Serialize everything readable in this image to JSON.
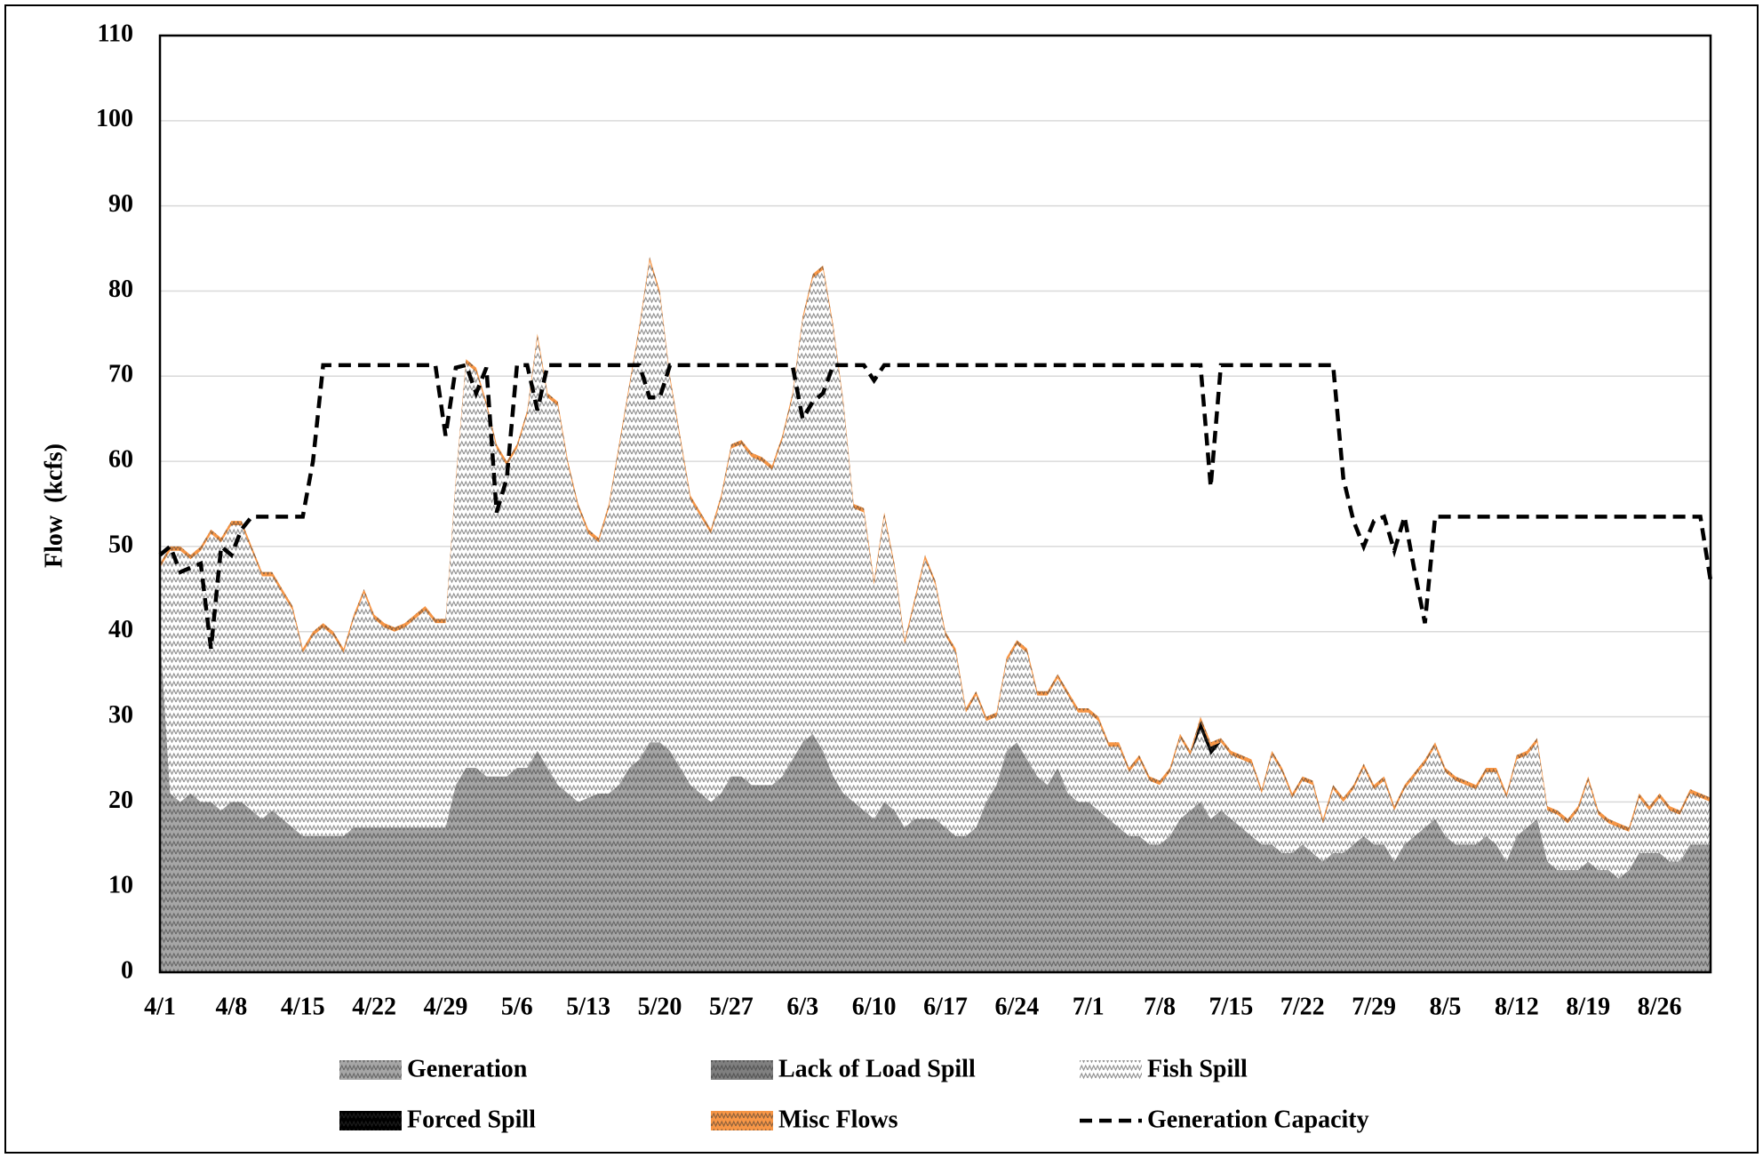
{
  "chart_data": {
    "type": "area",
    "y_label": "Flow  (kcfs)",
    "categories": [
      "4/1",
      null,
      null,
      null,
      null,
      null,
      null,
      "4/8",
      null,
      null,
      null,
      null,
      null,
      null,
      "4/15",
      null,
      null,
      null,
      null,
      null,
      null,
      "4/22",
      null,
      null,
      null,
      null,
      null,
      null,
      "4/29",
      null,
      null,
      null,
      null,
      null,
      null,
      "5/6",
      null,
      null,
      null,
      null,
      null,
      null,
      "5/13",
      null,
      null,
      null,
      null,
      null,
      null,
      "5/20",
      null,
      null,
      null,
      null,
      null,
      null,
      "5/27",
      null,
      null,
      null,
      null,
      null,
      null,
      "6/3",
      null,
      null,
      null,
      null,
      null,
      null,
      "6/10",
      null,
      null,
      null,
      null,
      null,
      null,
      "6/17",
      null,
      null,
      null,
      null,
      null,
      null,
      "6/24",
      null,
      null,
      null,
      null,
      null,
      null,
      "7/1",
      null,
      null,
      null,
      null,
      null,
      null,
      "7/8",
      null,
      null,
      null,
      null,
      null,
      null,
      "7/15",
      null,
      null,
      null,
      null,
      null,
      null,
      "7/22",
      null,
      null,
      null,
      null,
      null,
      null,
      "7/29",
      null,
      null,
      null,
      null,
      null,
      null,
      "8/5",
      null,
      null,
      null,
      null,
      null,
      null,
      "8/12",
      null,
      null,
      null,
      null,
      null,
      null,
      "8/19",
      null,
      null,
      null,
      null,
      null,
      null,
      "8/26",
      null,
      null,
      null,
      null,
      null
    ],
    "series": [
      {
        "name": "Generation",
        "color": "#a6a6a6",
        "values": [
          40,
          21,
          20,
          21,
          20,
          20,
          19,
          20,
          20,
          19,
          18,
          19,
          18,
          17,
          16,
          16,
          16,
          16,
          16,
          17,
          17,
          17,
          17,
          17,
          17,
          17,
          17,
          17,
          17,
          22,
          24,
          24,
          23,
          23,
          23,
          24,
          24,
          26,
          24,
          22,
          21,
          20,
          20.5,
          21,
          21,
          22,
          24,
          25,
          27,
          27,
          26,
          24,
          22,
          21,
          20,
          21,
          23,
          23,
          22,
          22,
          22,
          23,
          25,
          27,
          28,
          26,
          23,
          21,
          20,
          19,
          18,
          20,
          19,
          17,
          18,
          18,
          18,
          17,
          16,
          16,
          17,
          20,
          22,
          26,
          27,
          25,
          23,
          22,
          24,
          21,
          20,
          20,
          19,
          18,
          17,
          16,
          16,
          15,
          15,
          16,
          18,
          19,
          20,
          18,
          19,
          18,
          17,
          16,
          15,
          15,
          14,
          14,
          15,
          14,
          13,
          14,
          14,
          15,
          16,
          15,
          15,
          13,
          15,
          16,
          17,
          18,
          16,
          15,
          15,
          15,
          16,
          15,
          13,
          16,
          17,
          18,
          13,
          12,
          12,
          12,
          13,
          12,
          12,
          11,
          12,
          14,
          14,
          14,
          13,
          13,
          15,
          15,
          15
        ]
      },
      {
        "name": "Lack of Load Spill",
        "color": "#7f7f7f",
        "values": [
          0,
          0,
          0,
          0,
          0,
          0,
          0,
          0,
          0,
          0,
          0,
          0,
          0,
          0,
          0,
          0,
          0,
          0,
          0,
          0,
          0,
          0,
          0,
          0,
          0,
          0,
          0,
          0,
          0,
          0,
          0,
          0,
          0,
          0,
          0,
          0,
          0,
          0,
          0,
          0,
          0,
          0,
          0,
          0,
          0,
          0,
          0,
          0,
          0,
          0,
          0,
          0,
          0,
          0,
          0,
          0,
          0,
          0,
          0,
          0,
          0,
          0,
          0,
          0,
          0,
          0,
          0,
          0,
          0,
          0,
          0,
          0,
          0,
          0,
          0,
          0,
          0,
          0,
          0,
          0,
          0,
          0,
          0,
          0,
          0,
          0,
          0,
          0,
          0,
          0,
          0,
          0,
          0,
          0,
          0,
          0,
          0,
          0,
          0,
          0,
          0,
          0,
          0,
          0,
          0,
          0,
          0,
          0,
          0,
          0,
          0,
          0,
          0,
          0,
          0,
          0,
          0,
          0,
          0,
          0,
          0,
          0,
          0,
          0,
          0,
          0,
          0,
          0,
          0,
          0,
          0,
          0,
          0,
          0,
          0,
          0,
          0,
          0,
          0,
          0,
          0,
          0,
          0,
          0,
          0,
          0,
          0,
          0,
          0,
          0,
          0,
          0,
          0
        ]
      },
      {
        "name": "Fish Spill",
        "color": "#ffffff",
        "values": [
          7.5,
          28.5,
          29.5,
          27.5,
          29.5,
          31.5,
          31.5,
          32.5,
          32.5,
          30.5,
          28.5,
          27.5,
          26.5,
          25.5,
          21.5,
          23.5,
          24.5,
          23.5,
          21.5,
          24.5,
          27.5,
          24.5,
          23.5,
          23,
          23.5,
          24.5,
          25.5,
          24,
          24,
          35.5,
          47.5,
          46.5,
          43.5,
          38.5,
          36.5,
          37.5,
          41.5,
          48.5,
          43.5,
          44.5,
          38.5,
          34.5,
          31,
          29.5,
          33.5,
          39.5,
          44.5,
          50.5,
          56.5,
          52.5,
          43.5,
          38.5,
          33.5,
          32.5,
          31.5,
          34.5,
          38.5,
          39,
          38.5,
          38,
          37,
          39.5,
          42.5,
          49.5,
          53.5,
          56.5,
          52.5,
          45.5,
          34.5,
          35,
          27.5,
          33.5,
          28.5,
          21.5,
          25.5,
          30.5,
          27.5,
          22.5,
          21.5,
          14.5,
          15.5,
          9.5,
          8,
          10.5,
          11.5,
          12.5,
          9.5,
          10.5,
          10.5,
          11.5,
          10.5,
          10.5,
          10.5,
          8.5,
          9.5,
          7.5,
          9,
          7.5,
          7,
          7.5,
          9.5,
          6.5,
          8.5,
          7.5,
          8,
          7.5,
          8,
          8.5,
          6,
          10.5,
          9.5,
          6.5,
          7.5,
          8,
          4.5,
          7.5,
          6,
          6.5,
          8,
          6.5,
          7.5,
          6,
          6.5,
          7,
          7.5,
          8.5,
          7.5,
          7.5,
          7,
          6.5,
          7.5,
          8.5,
          7.5,
          9,
          8.5,
          9,
          6,
          6.5,
          5.5,
          7,
          9.5,
          6.5,
          5.5,
          6,
          4.5,
          6.5,
          5,
          6.5,
          6,
          5.5,
          6,
          5.5,
          5
        ]
      },
      {
        "name": "Forced Spill",
        "color": "#000000",
        "values": [
          0,
          0,
          0,
          0,
          0,
          0,
          0,
          0,
          0,
          0,
          0,
          0,
          0,
          0,
          0,
          0,
          0,
          0,
          0,
          0,
          0,
          0,
          0,
          0,
          0,
          0,
          0,
          0,
          0,
          0,
          0,
          0,
          0,
          0,
          0,
          0,
          0,
          0,
          0,
          0,
          0,
          0,
          0,
          0,
          0,
          0,
          0,
          0,
          0,
          0,
          0,
          0,
          0,
          0,
          0,
          0,
          0,
          0,
          0,
          0,
          0,
          0,
          0,
          0,
          0,
          0,
          0,
          0,
          0,
          0,
          0,
          0,
          0,
          0,
          0,
          0,
          0,
          0,
          0,
          0,
          0,
          0,
          0,
          0,
          0,
          0,
          0,
          0,
          0,
          0,
          0,
          0,
          0,
          0,
          0,
          0,
          0,
          0,
          0,
          0,
          0,
          0,
          1,
          1,
          0,
          0,
          0,
          0,
          0,
          0,
          0,
          0,
          0,
          0,
          0,
          0,
          0,
          0,
          0,
          0,
          0,
          0,
          0,
          0,
          0,
          0,
          0,
          0,
          0,
          0,
          0,
          0,
          0,
          0,
          0,
          0,
          0,
          0,
          0,
          0,
          0,
          0,
          0,
          0,
          0,
          0,
          0,
          0,
          0,
          0,
          0,
          0,
          0
        ]
      },
      {
        "name": "Misc Flows",
        "color": "#f79646",
        "values": [
          0.5,
          0.5,
          0.5,
          0.5,
          0.5,
          0.5,
          0.5,
          0.5,
          0.5,
          0.5,
          0.5,
          0.5,
          0.5,
          0.5,
          0.5,
          0.5,
          0.5,
          0.5,
          0.5,
          0.5,
          0.5,
          0.5,
          0.5,
          0.5,
          0.5,
          0.5,
          0.5,
          0.5,
          0.5,
          0.5,
          0.5,
          0.5,
          0.5,
          0.5,
          0.5,
          0.5,
          0.5,
          0.5,
          0.5,
          0.5,
          0.5,
          0.5,
          0.5,
          0.5,
          0.5,
          0.5,
          0.5,
          0.5,
          0.5,
          0.5,
          0.5,
          0.5,
          0.5,
          0.5,
          0.5,
          0.5,
          0.5,
          0.5,
          0.5,
          0.5,
          0.5,
          0.5,
          0.5,
          0.5,
          0.5,
          0.5,
          0.5,
          0.5,
          0.5,
          0.5,
          0.5,
          0.5,
          0.5,
          0.5,
          0.5,
          0.5,
          0.5,
          0.5,
          0.5,
          0.5,
          0.5,
          0.5,
          0.5,
          0.5,
          0.5,
          0.5,
          0.5,
          0.5,
          0.5,
          0.5,
          0.5,
          0.5,
          0.5,
          0.5,
          0.5,
          0.5,
          0.5,
          0.5,
          0.5,
          0.5,
          0.5,
          0.5,
          0.5,
          0.5,
          0.5,
          0.5,
          0.5,
          0.5,
          0.5,
          0.5,
          0.5,
          0.5,
          0.5,
          0.5,
          0.5,
          0.5,
          0.5,
          0.5,
          0.5,
          0.5,
          0.5,
          0.5,
          0.5,
          0.5,
          0.5,
          0.5,
          0.5,
          0.5,
          0.5,
          0.5,
          0.5,
          0.5,
          0.5,
          0.5,
          0.5,
          0.5,
          0.5,
          0.5,
          0.5,
          0.5,
          0.5,
          0.5,
          0.5,
          0.5,
          0.5,
          0.5,
          0.5,
          0.5,
          0.5,
          0.5,
          0.5,
          0.5,
          0.5
        ]
      },
      {
        "name": "Generation Capacity",
        "color": "#000000",
        "type": "line",
        "line_style": "dashed",
        "values": [
          49,
          50,
          47,
          47.5,
          48,
          38,
          50,
          49,
          52,
          53.5,
          53.5,
          53.5,
          53.5,
          53.5,
          53.5,
          60,
          71.3,
          71.3,
          71.3,
          71.3,
          71.3,
          71.3,
          71.3,
          71.3,
          71.3,
          71.3,
          71.3,
          71.3,
          63,
          71,
          71.3,
          68,
          71,
          54,
          58,
          71.3,
          71.3,
          66,
          71.3,
          71.3,
          71.3,
          71.3,
          71.3,
          71.3,
          71.3,
          71.3,
          71.3,
          71.3,
          67.5,
          67.5,
          71.3,
          71.3,
          71.3,
          71.3,
          71.3,
          71.3,
          71.3,
          71.3,
          71.3,
          71.3,
          71.3,
          71.3,
          71.3,
          65,
          67,
          68,
          71.3,
          71.3,
          71.3,
          71.3,
          69.5,
          71.3,
          71.3,
          71.3,
          71.3,
          71.3,
          71.3,
          71.3,
          71.3,
          71.3,
          71.3,
          71.3,
          71.3,
          71.3,
          71.3,
          71.3,
          71.3,
          71.3,
          71.3,
          71.3,
          71.3,
          71.3,
          71.3,
          71.3,
          71.3,
          71.3,
          71.3,
          71.3,
          71.3,
          71.3,
          71.3,
          71.3,
          71.3,
          57,
          71.3,
          71.3,
          71.3,
          71.3,
          71.3,
          71.3,
          71.3,
          71.3,
          71.3,
          71.3,
          71.3,
          71.3,
          58,
          53,
          50,
          53,
          53.5,
          49.5,
          53.5,
          47,
          41,
          53.5,
          53.5,
          53.5,
          53.5,
          53.5,
          53.5,
          53.5,
          53.5,
          53.5,
          53.5,
          53.5,
          53.5,
          53.5,
          53.5,
          53.5,
          53.5,
          53.5,
          53.5,
          53.5,
          53.5,
          53.5,
          53.5,
          53.5,
          53.5,
          53.5,
          53.5,
          53.5,
          46
        ]
      }
    ],
    "ylim": [
      0,
      110
    ],
    "yticks": [
      0,
      10,
      20,
      30,
      40,
      50,
      60,
      70,
      80,
      90,
      100,
      110
    ],
    "grid": true,
    "legend": "bottom"
  }
}
